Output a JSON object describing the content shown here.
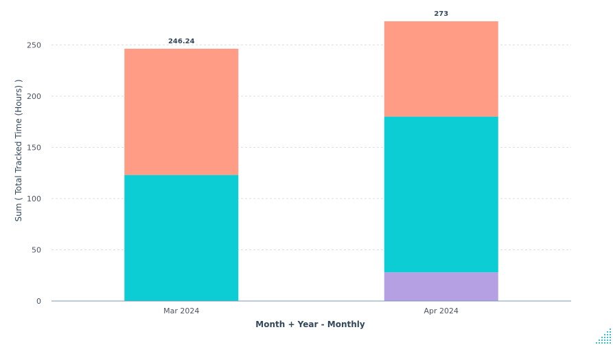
{
  "chart_data": {
    "type": "bar",
    "stacked": true,
    "categories": [
      "Mar 2024",
      "Apr 2024"
    ],
    "series": [
      {
        "color": "#b5a0e3",
        "values": [
          0,
          28
        ]
      },
      {
        "color": "#0ccdd4",
        "values": [
          123,
          152
        ]
      },
      {
        "color": "#ff9c86",
        "values": [
          123.24,
          93
        ]
      }
    ],
    "totals": [
      "246.24",
      "273"
    ],
    "xlabel": "Month + Year - Monthly",
    "ylabel": "Sum ( Total Tracked Time (Hours) )",
    "ylim": [
      0,
      275
    ],
    "yticks": [
      0,
      50,
      100,
      150,
      200,
      250
    ],
    "grid": true,
    "legend": "none"
  }
}
